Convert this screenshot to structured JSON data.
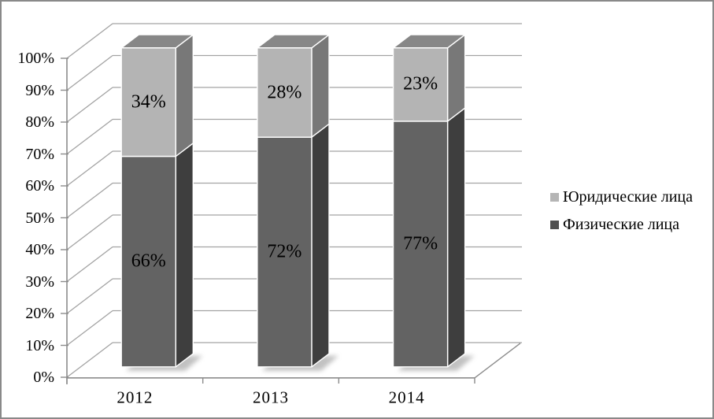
{
  "frame": {
    "border_color": "#898989",
    "background": "#ffffff"
  },
  "chart_data": {
    "type": "bar",
    "subtype": "stacked-100-percent-3d",
    "title": "",
    "xlabel": "",
    "ylabel": "",
    "grid": true,
    "categories": [
      "2012",
      "2013",
      "2014"
    ],
    "series": [
      {
        "name": "Физические лица",
        "values": [
          66,
          72,
          77
        ],
        "labels": [
          "66%",
          "72%",
          "77%"
        ],
        "front_color": "#636363",
        "side_color": "#3e3e3e",
        "top_color": "#585858"
      },
      {
        "name": "Юридические лица",
        "values": [
          34,
          28,
          23
        ],
        "labels": [
          "34%",
          "28%",
          "23%"
        ],
        "front_color": "#b4b4b4",
        "side_color": "#787878",
        "top_color": "#878787"
      }
    ],
    "y_axis": {
      "min": 0,
      "max": 100,
      "ticks": [
        "0%",
        "10%",
        "20%",
        "30%",
        "40%",
        "50%",
        "60%",
        "70%",
        "80%",
        "90%",
        "100%"
      ]
    },
    "legend": {
      "position": "right",
      "entries": [
        "Юридические лица",
        "Физические лица"
      ],
      "colors": [
        "#b5b5b5",
        "#4f4f4f"
      ]
    },
    "colors": {
      "gridline": "#a3a3a3",
      "axis": "#8c8c8c",
      "edge": "#ffffff",
      "text": "#000000",
      "shadow": "#8f8f8f"
    }
  }
}
